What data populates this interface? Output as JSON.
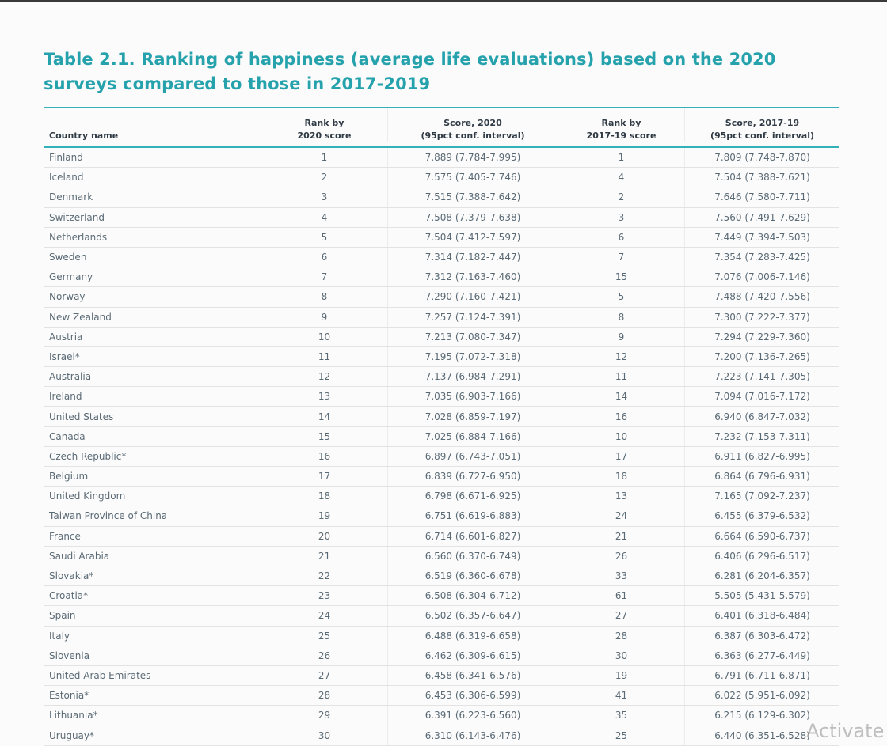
{
  "header": {
    "title_lines": [
      "Table 2.1. Ranking of happiness (average life evaluations) based on the 2020",
      "surveys compared to those in 2017-2019"
    ]
  },
  "table": {
    "columns": [
      [
        "Country name"
      ],
      [
        "Rank by",
        "2020 score"
      ],
      [
        "Score, 2020",
        "(95pct conf. interval)"
      ],
      [
        "Rank by",
        "2017-19 score"
      ],
      [
        "Score, 2017-19",
        "(95pct conf. interval)"
      ]
    ],
    "rows": [
      [
        "Finland",
        "1",
        "7.889 (7.784-7.995)",
        "1",
        "7.809 (7.748-7.870)"
      ],
      [
        "Iceland",
        "2",
        "7.575 (7.405-7.746)",
        "4",
        "7.504 (7.388-7.621)"
      ],
      [
        "Denmark",
        "3",
        "7.515 (7.388-7.642)",
        "2",
        "7.646 (7.580-7.711)"
      ],
      [
        "Switzerland",
        "4",
        "7.508 (7.379-7.638)",
        "3",
        "7.560 (7.491-7.629)"
      ],
      [
        "Netherlands",
        "5",
        "7.504 (7.412-7.597)",
        "6",
        "7.449 (7.394-7.503)"
      ],
      [
        "Sweden",
        "6",
        "7.314 (7.182-7.447)",
        "7",
        "7.354 (7.283-7.425)"
      ],
      [
        "Germany",
        "7",
        "7.312 (7.163-7.460)",
        "15",
        "7.076 (7.006-7.146)"
      ],
      [
        "Norway",
        "8",
        "7.290 (7.160-7.421)",
        "5",
        "7.488 (7.420-7.556)"
      ],
      [
        "New Zealand",
        "9",
        "7.257 (7.124-7.391)",
        "8",
        "7.300 (7.222-7.377)"
      ],
      [
        "Austria",
        "10",
        "7.213 (7.080-7.347)",
        "9",
        "7.294 (7.229-7.360)"
      ],
      [
        "Israel*",
        "11",
        "7.195 (7.072-7.318)",
        "12",
        "7.200 (7.136-7.265)"
      ],
      [
        "Australia",
        "12",
        "7.137 (6.984-7.291)",
        "11",
        "7.223 (7.141-7.305)"
      ],
      [
        "Ireland",
        "13",
        "7.035 (6.903-7.166)",
        "14",
        "7.094 (7.016-7.172)"
      ],
      [
        "United States",
        "14",
        "7.028 (6.859-7.197)",
        "16",
        "6.940 (6.847-7.032)"
      ],
      [
        "Canada",
        "15",
        "7.025 (6.884-7.166)",
        "10",
        "7.232 (7.153-7.311)"
      ],
      [
        "Czech Republic*",
        "16",
        "6.897 (6.743-7.051)",
        "17",
        "6.911 (6.827-6.995)"
      ],
      [
        "Belgium",
        "17",
        "6.839 (6.727-6.950)",
        "18",
        "6.864 (6.796-6.931)"
      ],
      [
        "United Kingdom",
        "18",
        "6.798 (6.671-6.925)",
        "13",
        "7.165 (7.092-7.237)"
      ],
      [
        "Taiwan Province of China",
        "19",
        "6.751 (6.619-6.883)",
        "24",
        "6.455 (6.379-6.532)"
      ],
      [
        "France",
        "20",
        "6.714 (6.601-6.827)",
        "21",
        "6.664 (6.590-6.737)"
      ],
      [
        "Saudi Arabia",
        "21",
        "6.560 (6.370-6.749)",
        "26",
        "6.406 (6.296-6.517)"
      ],
      [
        "Slovakia*",
        "22",
        "6.519 (6.360-6.678)",
        "33",
        "6.281 (6.204-6.357)"
      ],
      [
        "Croatia*",
        "23",
        "6.508 (6.304-6.712)",
        "61",
        "5.505 (5.431-5.579)"
      ],
      [
        "Spain",
        "24",
        "6.502 (6.357-6.647)",
        "27",
        "6.401 (6.318-6.484)"
      ],
      [
        "Italy",
        "25",
        "6.488 (6.319-6.658)",
        "28",
        "6.387 (6.303-6.472)"
      ],
      [
        "Slovenia",
        "26",
        "6.462 (6.309-6.615)",
        "30",
        "6.363 (6.277-6.449)"
      ],
      [
        "United Arab Emirates",
        "27",
        "6.458 (6.341-6.576)",
        "19",
        "6.791 (6.711-6.871)"
      ],
      [
        "Estonia*",
        "28",
        "6.453 (6.306-6.599)",
        "41",
        "6.022 (5.951-6.092)"
      ],
      [
        "Lithuania*",
        "29",
        "6.391 (6.223-6.560)",
        "35",
        "6.215 (6.129-6.302)"
      ],
      [
        "Uruguay*",
        "30",
        "6.310 (6.143-6.476)",
        "25",
        "6.440 (6.351-6.528)"
      ]
    ]
  },
  "watermark": "Activate"
}
